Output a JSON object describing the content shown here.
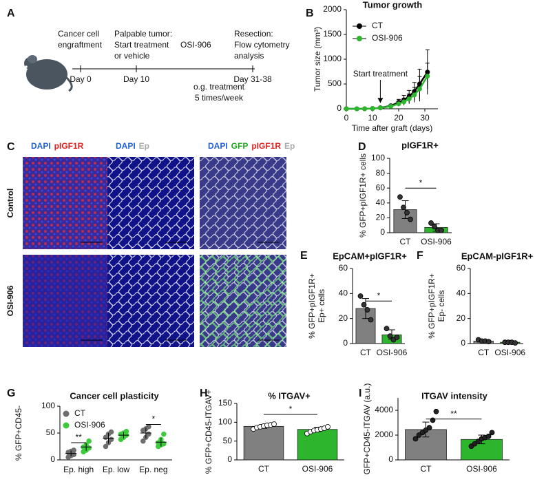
{
  "panel_labels": [
    "A",
    "B",
    "C",
    "D",
    "E",
    "F",
    "G",
    "H",
    "I"
  ],
  "timeline": {
    "events": [
      {
        "lines": [
          "Cancer cell",
          "engraftment"
        ],
        "day": "Day 0"
      },
      {
        "lines": [
          "Palpable tumor:",
          "Start treatment",
          "or vehicle"
        ],
        "day": "Day 10"
      },
      {
        "lines": [
          "Resection:",
          "Flow cytometry",
          "analysis"
        ],
        "day": "Day 31-38"
      }
    ],
    "drug": "OSI-906",
    "note": [
      "o.g. treatment",
      "5 times/week"
    ]
  },
  "images": {
    "columns": [
      [
        {
          "text": "DAPI",
          "color": "#1f5fd6"
        },
        {
          "text": "pIGF1R",
          "color": "#e0201c"
        }
      ],
      [
        {
          "text": "DAPI",
          "color": "#1f5fd6"
        },
        {
          "text": "Ep",
          "color": "#a8a8a8"
        }
      ],
      [
        {
          "text": "DAPI",
          "color": "#1f5fd6"
        },
        {
          "text": "GFP",
          "color": "#21a821"
        },
        {
          "text": "pIGF1R",
          "color": "#e0201c"
        },
        {
          "text": "Ep",
          "color": "#a8a8a8"
        }
      ]
    ],
    "rows": [
      "Control",
      "OSI-906"
    ]
  },
  "chart_data": [
    {
      "type": "line",
      "title": "Tumor growth",
      "xlabel": "Time after graft (days)",
      "ylabel": "Tumor size (mm³)",
      "x": [
        0,
        4,
        7,
        10,
        13,
        17,
        20,
        22,
        24,
        26,
        28,
        31
      ],
      "xlim": [
        0,
        35
      ],
      "xticks": [
        0,
        10,
        20,
        30
      ],
      "ylim": [
        0,
        2000
      ],
      "yticks": [
        0,
        500,
        1000,
        1500,
        2000
      ],
      "series": [
        {
          "name": "CT",
          "color": "#000000",
          "values": [
            0,
            0,
            0,
            5,
            20,
            60,
            130,
            180,
            250,
            350,
            500,
            740
          ],
          "errors": [
            0,
            0,
            0,
            5,
            10,
            25,
            60,
            90,
            120,
            180,
            300,
            450
          ]
        },
        {
          "name": "OSI-906",
          "color": "#2db52d",
          "values": [
            0,
            0,
            0,
            5,
            15,
            50,
            100,
            140,
            200,
            280,
            400,
            660
          ],
          "errors": [
            0,
            0,
            0,
            5,
            8,
            20,
            50,
            70,
            100,
            150,
            250,
            260
          ]
        }
      ],
      "annotation": {
        "text": "Start treatment",
        "x": 13
      }
    },
    {
      "type": "bar",
      "title": "pIGF1R+",
      "ylabel": "% GFP+pIGF1R+ cells",
      "categories": [
        "CT",
        "OSI-906"
      ],
      "values": [
        31,
        7
      ],
      "errors": [
        12,
        5
      ],
      "points": [
        [
          48,
          34,
          27,
          18
        ],
        [
          13,
          8,
          3,
          3
        ]
      ],
      "colors": [
        "#808080",
        "#2db52d"
      ],
      "point_color": "#333333",
      "ylim": [
        0,
        100
      ],
      "yticks": [
        0,
        20,
        40,
        60,
        80,
        100
      ],
      "significance": {
        "label": "*",
        "y": 60
      }
    },
    {
      "type": "bar",
      "title": "EpCAM+pIGF1R+",
      "ylabel": [
        "% GFP+pIGF1R+",
        "Ep+ cells"
      ],
      "categories": [
        "CT",
        "OSI-906"
      ],
      "values": [
        28,
        7
      ],
      "errors": [
        8,
        4
      ],
      "points": [
        [
          38,
          31,
          27,
          19
        ],
        [
          12,
          6,
          3,
          5
        ]
      ],
      "colors": [
        "#808080",
        "#2db52d"
      ],
      "point_color": "#333333",
      "ylim": [
        0,
        60
      ],
      "yticks": [
        0,
        20,
        40,
        60
      ],
      "significance": {
        "label": "*",
        "y": 34
      }
    },
    {
      "type": "bar",
      "title": "EpCAM-pIGF1R+",
      "ylabel": [
        "% GFP+pIGF1R+",
        "Ep- cells"
      ],
      "categories": [
        "CT",
        "OSI-906"
      ],
      "values": [
        2,
        1
      ],
      "errors": [
        1,
        0.5
      ],
      "points": [
        [
          3,
          2,
          2,
          1.5
        ],
        [
          1,
          1,
          1,
          0.5
        ]
      ],
      "colors": [
        "#808080",
        "#2db52d"
      ],
      "point_color": "#333333",
      "ylim": [
        0,
        60
      ],
      "yticks": [
        0,
        20,
        40,
        60
      ]
    },
    {
      "type": "dot",
      "title": "Cancer cell plasticity",
      "ylabel": "% GFP+CD45-",
      "categories": [
        "Ep. high",
        "Ep. low",
        "Ep. neg"
      ],
      "ylim": [
        0,
        100
      ],
      "yticks": [
        0,
        50,
        100
      ],
      "series": [
        {
          "name": "CT",
          "color": "#6e6e6e",
          "values": [
            12,
            40,
            50
          ],
          "errors": [
            5,
            10,
            10
          ],
          "points": [
            [
              5,
              8,
              10,
              14,
              16,
              18
            ],
            [
              25,
              32,
              38,
              42,
              48,
              52
            ],
            [
              35,
              42,
              48,
              55,
              58,
              62
            ]
          ]
        },
        {
          "name": "OSI-906",
          "color": "#3ec93e",
          "values": [
            24,
            46,
            33
          ],
          "errors": [
            7,
            6,
            8
          ],
          "points": [
            [
              15,
              18,
              22,
              24,
              28,
              35
            ],
            [
              38,
              42,
              46,
              48,
              50,
              53
            ],
            [
              25,
              28,
              30,
              32,
              38,
              48
            ]
          ]
        }
      ],
      "annotations": [
        {
          "category": 0,
          "y": 32,
          "label": "**"
        },
        {
          "category": 2,
          "y": 66,
          "label": "*"
        }
      ]
    },
    {
      "type": "bar",
      "title": "% ITGAV+",
      "ylabel": "% GFP+CD45-ITGAV+",
      "categories": [
        "CT",
        "OSI-906"
      ],
      "values": [
        89,
        81
      ],
      "errors": [
        5,
        6
      ],
      "points": [
        [
          82,
          86,
          88,
          90,
          92,
          93,
          95
        ],
        [
          70,
          75,
          78,
          80,
          82,
          84,
          88
        ]
      ],
      "colors": [
        "#808080",
        "#2db52d"
      ],
      "point_color": "#ffffff",
      "ylim": [
        0,
        150
      ],
      "yticks": [
        0,
        50,
        100,
        150
      ],
      "significance": {
        "label": "*",
        "y": 121
      }
    },
    {
      "type": "bar",
      "title": "ITGAV intensity",
      "ylabel": "GFP+CD45-ITGAV (a.u.)",
      "categories": [
        "CT",
        "OSI-906"
      ],
      "values": [
        2450,
        1650
      ],
      "errors": [
        600,
        350
      ],
      "points": [
        [
          1700,
          2000,
          2200,
          2400,
          2600,
          3200,
          3900
        ],
        [
          1100,
          1300,
          1500,
          1700,
          1800,
          1900,
          2200
        ]
      ],
      "colors": [
        "#808080",
        "#2db52d"
      ],
      "point_color": "#222222",
      "ylim": [
        0,
        5000
      ],
      "yticks": [
        0,
        2000,
        4000
      ],
      "significance": {
        "label": "**",
        "y": 3300
      }
    }
  ]
}
